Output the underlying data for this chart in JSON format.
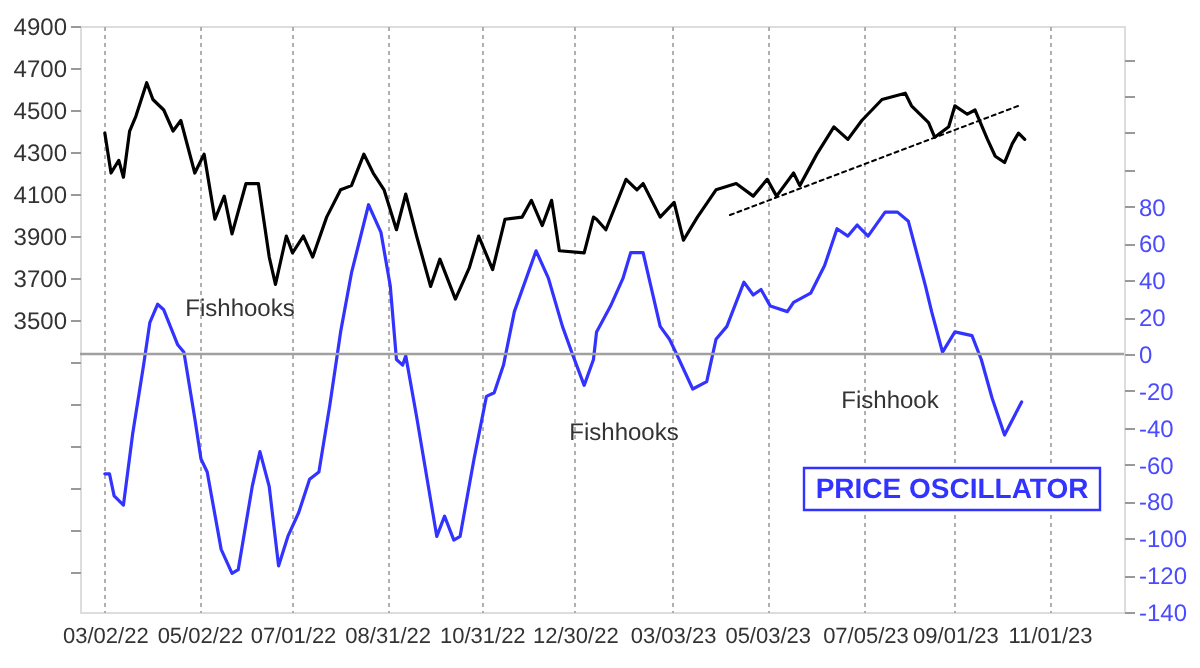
{
  "chart_data": {
    "type": "line",
    "xlim": [
      "2022-02-14",
      "2023-12-19"
    ],
    "xticks": [
      {
        "value": "2022-03-02",
        "label": "03/02/22"
      },
      {
        "value": "2022-05-02",
        "label": "05/02/22"
      },
      {
        "value": "2022-07-01",
        "label": "07/01/22"
      },
      {
        "value": "2022-08-31",
        "label": "08/31/22"
      },
      {
        "value": "2022-10-31",
        "label": "10/31/22"
      },
      {
        "value": "2022-12-30",
        "label": "12/30/22"
      },
      {
        "value": "2023-03-03",
        "label": "03/03/23"
      },
      {
        "value": "2023-05-03",
        "label": "05/03/23"
      },
      {
        "value": "2023-07-05",
        "label": "07/05/23"
      },
      {
        "value": "2023-09-01",
        "label": "09/01/23"
      },
      {
        "value": "2023-11-01",
        "label": "11/01/23"
      }
    ],
    "ylim": [
      2110,
      4900
    ],
    "yticks": [
      {
        "value": 2300,
        "label": null
      },
      {
        "value": 2500,
        "label": null
      },
      {
        "value": 2700,
        "label": null
      },
      {
        "value": 2900,
        "label": null
      },
      {
        "value": 3100,
        "label": null
      },
      {
        "value": 3300,
        "label": null
      },
      3500,
      3700,
      3900,
      4100,
      4300,
      4500,
      4700,
      4900
    ],
    "y2lim": [
      -140,
      178
    ],
    "y2ticks": [
      -140,
      -120,
      -100,
      -80,
      -60,
      -40,
      -20,
      0,
      20,
      40,
      60,
      80,
      {
        "value": 100,
        "label": null
      },
      {
        "value": 120,
        "label": null
      },
      {
        "value": 140,
        "label": null
      },
      {
        "value": 160,
        "label": null
      }
    ],
    "grid": "x",
    "legend": false,
    "marker": "none",
    "ref_lines": [
      {
        "axis": "y2",
        "value": 0,
        "color": "#a0a0a0"
      }
    ],
    "annotations": [
      "Fishhooks",
      "Fishhooks",
      "Fishhook"
    ],
    "series": [
      {
        "color": "#000000",
        "line_style": "solid",
        "x": [
          "2022-03-02",
          "2022-03-06",
          "2022-03-11",
          "2022-03-14",
          "2022-03-18",
          "2022-03-22",
          "2022-03-29",
          "2022-04-02",
          "2022-04-09",
          "2022-04-15",
          "2022-04-20",
          "2022-04-29",
          "2022-05-05",
          "2022-05-12",
          "2022-05-18",
          "2022-05-23",
          "2022-06-01",
          "2022-06-09",
          "2022-06-16",
          "2022-06-20",
          "2022-06-27",
          "2022-07-01",
          "2022-07-08",
          "2022-07-14",
          "2022-07-23",
          "2022-08-01",
          "2022-08-08",
          "2022-08-16",
          "2022-08-22",
          "2022-08-29",
          "2022-09-06",
          "2022-09-12",
          "2022-09-19",
          "2022-09-28",
          "2022-10-04",
          "2022-10-14",
          "2022-10-23",
          "2022-10-29",
          "2022-11-07",
          "2022-11-15",
          "2022-11-26",
          "2022-12-02",
          "2022-12-09",
          "2022-12-15",
          "2022-12-20",
          "2023-01-05",
          "2023-01-11",
          "2023-01-13",
          "2023-01-19",
          "2023-02-01",
          "2023-02-08",
          "2023-02-12",
          "2023-02-23",
          "2023-03-04",
          "2023-03-10",
          "2023-03-19",
          "2023-03-31",
          "2023-04-13",
          "2023-04-24",
          "2023-05-03",
          "2023-05-09",
          "2023-05-20",
          "2023-05-24",
          "2023-06-04",
          "2023-06-15",
          "2023-06-24",
          "2023-07-03",
          "2023-07-16",
          "2023-07-31",
          "2023-08-04",
          "2023-08-15",
          "2023-08-19",
          "2023-08-28",
          "2023-09-01",
          "2023-09-09",
          "2023-09-14",
          "2023-09-22",
          "2023-09-27",
          "2023-10-03",
          "2023-10-08",
          "2023-10-12",
          "2023-10-16"
        ],
        "values": [
          4390,
          4200,
          4260,
          4180,
          4400,
          4470,
          4630,
          4550,
          4500,
          4400,
          4450,
          4200,
          4290,
          3980,
          4090,
          3910,
          4150,
          4150,
          3800,
          3670,
          3900,
          3820,
          3900,
          3800,
          3990,
          4120,
          4140,
          4290,
          4200,
          4120,
          3930,
          4100,
          3900,
          3660,
          3790,
          3600,
          3750,
          3900,
          3740,
          3980,
          3990,
          4070,
          3950,
          4070,
          3830,
          3820,
          3990,
          3980,
          3930,
          4170,
          4120,
          4150,
          3990,
          4060,
          3880,
          3990,
          4120,
          4150,
          4090,
          4170,
          4090,
          4200,
          4140,
          4290,
          4420,
          4360,
          4450,
          4550,
          4580,
          4520,
          4440,
          4370,
          4420,
          4520,
          4480,
          4500,
          4360,
          4280,
          4250,
          4340,
          4390,
          4360
        ]
      },
      {
        "color": "#000000",
        "line_style": "dotted",
        "x": [
          "2023-04-09",
          "2023-10-12"
        ],
        "values": [
          4000,
          4520
        ]
      },
      {
        "axis": "y2",
        "name": "PRICE OSCILLATOR",
        "color": "#3333ff",
        "line_style": "solid",
        "x": [
          "2022-03-02",
          "2022-03-05",
          "2022-03-08",
          "2022-03-14",
          "2022-03-20",
          "2022-03-27",
          "2022-03-31",
          "2022-04-05",
          "2022-04-09",
          "2022-04-18",
          "2022-04-22",
          "2022-04-29",
          "2022-05-03",
          "2022-05-07",
          "2022-05-16",
          "2022-05-23",
          "2022-05-27",
          "2022-06-05",
          "2022-06-10",
          "2022-06-16",
          "2022-06-22",
          "2022-06-28",
          "2022-07-05",
          "2022-07-12",
          "2022-07-18",
          "2022-07-25",
          "2022-08-01",
          "2022-08-08",
          "2022-08-19",
          "2022-08-27",
          "2022-09-02",
          "2022-09-06",
          "2022-09-10",
          "2022-09-12",
          "2022-09-19",
          "2022-10-02",
          "2022-10-07",
          "2022-10-13",
          "2022-10-17",
          "2022-10-26",
          "2022-11-03",
          "2022-11-08",
          "2022-11-14",
          "2022-11-21",
          "2022-12-05",
          "2022-12-13",
          "2022-12-22",
          "2022-12-28",
          "2023-01-05",
          "2023-01-11",
          "2023-01-13",
          "2023-01-22",
          "2023-01-30",
          "2023-02-04",
          "2023-02-12",
          "2023-02-23",
          "2023-03-01",
          "2023-03-05",
          "2023-03-16",
          "2023-03-25",
          "2023-03-31",
          "2023-04-07",
          "2023-04-18",
          "2023-04-24",
          "2023-04-29",
          "2023-05-05",
          "2023-05-16",
          "2023-05-20",
          "2023-05-31",
          "2023-06-09",
          "2023-06-17",
          "2023-06-24",
          "2023-06-30",
          "2023-07-07",
          "2023-07-18",
          "2023-07-26",
          "2023-08-02",
          "2023-08-13",
          "2023-08-17",
          "2023-08-24",
          "2023-09-01",
          "2023-09-12",
          "2023-09-18",
          "2023-09-25",
          "2023-10-03",
          "2023-10-14"
        ],
        "values": [
          -65,
          -65,
          -77,
          -82,
          -43,
          -6,
          17,
          27,
          24,
          5,
          1,
          -35,
          -57,
          -64,
          -106,
          -119,
          -117,
          -72,
          -53,
          -72,
          -115,
          -99,
          -86,
          -68,
          -64,
          -28,
          12,
          44,
          81,
          66,
          37,
          -3,
          -6,
          -1,
          -34,
          -99,
          -88,
          -101,
          -99,
          -57,
          -23,
          -21,
          -6,
          23,
          56,
          41,
          15,
          1,
          -17,
          -3,
          12,
          26,
          41,
          55,
          55,
          15,
          8,
          1,
          -19,
          -15,
          8,
          15,
          39,
          32,
          35,
          26,
          23,
          28,
          33,
          48,
          68,
          64,
          70,
          64,
          77,
          77,
          72,
          37,
          23,
          1,
          12,
          10,
          -3,
          -24,
          -44,
          -26
        ]
      }
    ]
  }
}
